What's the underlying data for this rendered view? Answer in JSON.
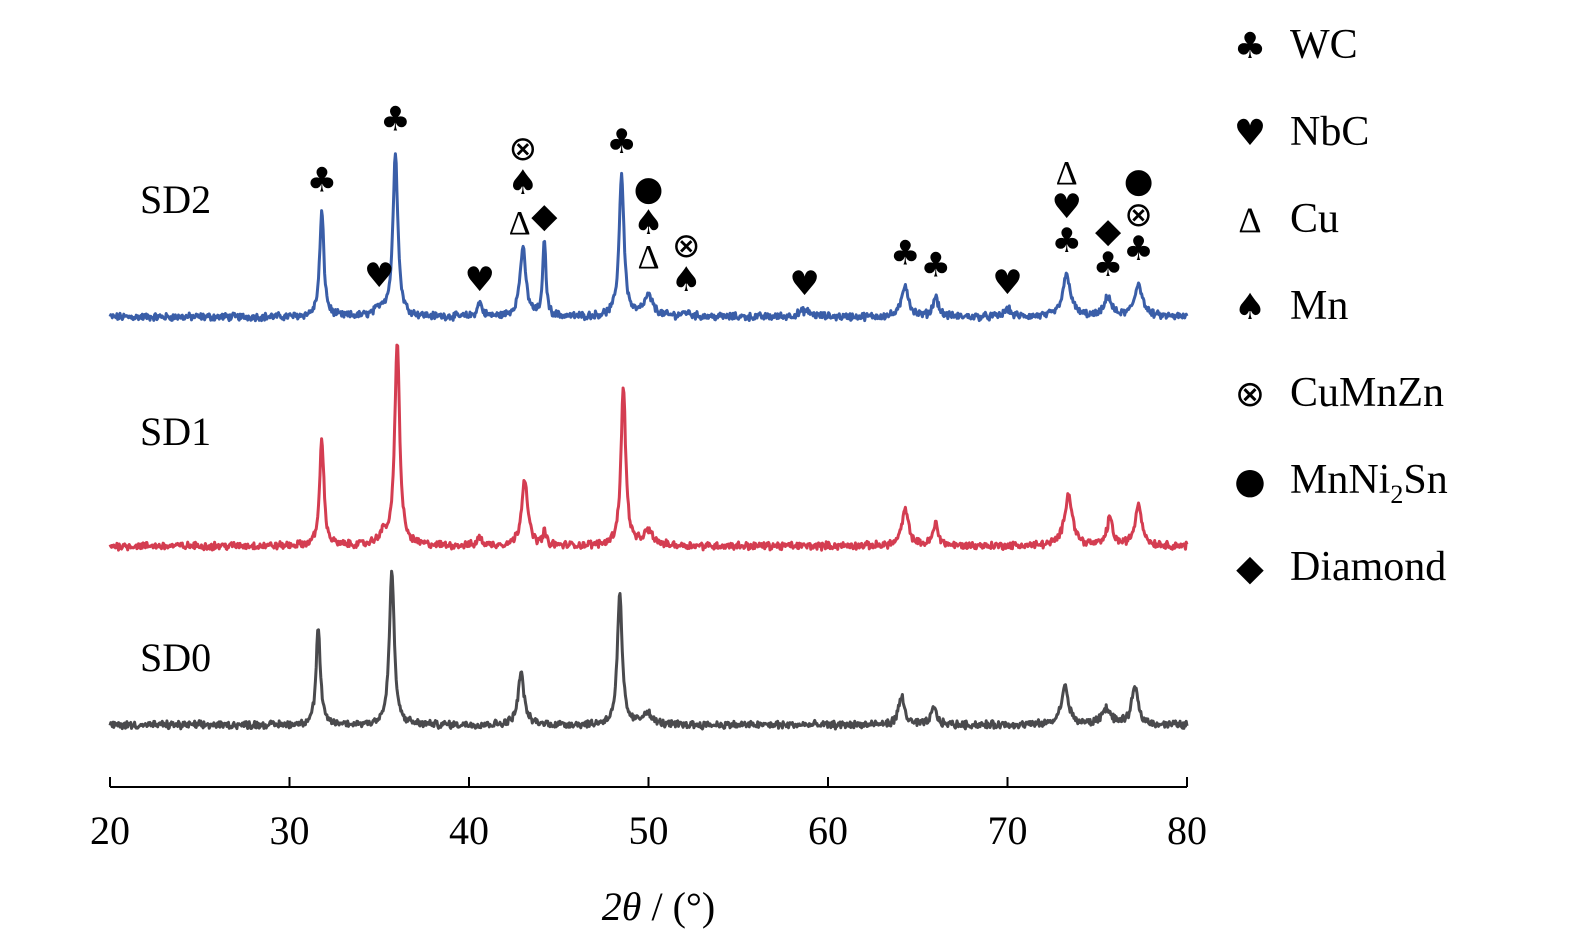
{
  "chart_data": {
    "type": "line",
    "xlabel_italic": "2θ",
    "xlabel_rest": " / (°)",
    "xlim": [
      20,
      80
    ],
    "x_ticks": [
      20,
      30,
      40,
      50,
      60,
      70,
      80
    ],
    "grid": false,
    "legend_placement": "right",
    "legend": [
      {
        "symbol": "♣",
        "label": "WC"
      },
      {
        "symbol": "♥",
        "label": "NbC"
      },
      {
        "symbol": "Δ",
        "label": "Cu"
      },
      {
        "symbol": "♠",
        "label": "Mn"
      },
      {
        "symbol": "⊗",
        "label": "CuMnZn"
      },
      {
        "symbol": "●",
        "label": "MnNi",
        "sub": "2",
        "tail": "Sn"
      },
      {
        "symbol": "◆",
        "label": "Diamond"
      }
    ],
    "series": [
      {
        "name": "SD2",
        "color": "#3a5ea8",
        "peaks": [
          {
            "x": 31.8,
            "h": 105,
            "w": 0.14
          },
          {
            "x": 35.1,
            "h": 8,
            "w": 0.35
          },
          {
            "x": 35.9,
            "h": 165,
            "w": 0.16
          },
          {
            "x": 40.6,
            "h": 14,
            "w": 0.15
          },
          {
            "x": 43.0,
            "h": 68,
            "w": 0.2
          },
          {
            "x": 44.2,
            "h": 78,
            "w": 0.1
          },
          {
            "x": 48.5,
            "h": 143,
            "w": 0.16
          },
          {
            "x": 50.0,
            "h": 20,
            "w": 0.3
          },
          {
            "x": 52.1,
            "h": 4,
            "w": 0.3
          },
          {
            "x": 58.7,
            "h": 6,
            "w": 0.4
          },
          {
            "x": 64.3,
            "h": 32,
            "w": 0.22
          },
          {
            "x": 66.0,
            "h": 20,
            "w": 0.18
          },
          {
            "x": 70.0,
            "h": 8,
            "w": 0.2
          },
          {
            "x": 73.3,
            "h": 42,
            "w": 0.26
          },
          {
            "x": 75.6,
            "h": 20,
            "w": 0.22
          },
          {
            "x": 77.3,
            "h": 33,
            "w": 0.26
          }
        ]
      },
      {
        "name": "SD1",
        "color": "#d43d51",
        "peaks": [
          {
            "x": 31.8,
            "h": 108,
            "w": 0.14
          },
          {
            "x": 35.2,
            "h": 10,
            "w": 0.3
          },
          {
            "x": 36.0,
            "h": 205,
            "w": 0.16
          },
          {
            "x": 40.6,
            "h": 8,
            "w": 0.15
          },
          {
            "x": 43.1,
            "h": 68,
            "w": 0.2
          },
          {
            "x": 44.2,
            "h": 14,
            "w": 0.1
          },
          {
            "x": 48.6,
            "h": 157,
            "w": 0.16
          },
          {
            "x": 50.0,
            "h": 14,
            "w": 0.3
          },
          {
            "x": 64.3,
            "h": 36,
            "w": 0.22
          },
          {
            "x": 66.0,
            "h": 22,
            "w": 0.18
          },
          {
            "x": 73.4,
            "h": 52,
            "w": 0.26
          },
          {
            "x": 75.7,
            "h": 28,
            "w": 0.18
          },
          {
            "x": 77.3,
            "h": 42,
            "w": 0.22
          }
        ]
      },
      {
        "name": "SD0",
        "color": "#4a4a4d",
        "peaks": [
          {
            "x": 31.6,
            "h": 97,
            "w": 0.14
          },
          {
            "x": 35.7,
            "h": 155,
            "w": 0.16
          },
          {
            "x": 42.9,
            "h": 52,
            "w": 0.2
          },
          {
            "x": 48.4,
            "h": 130,
            "w": 0.16
          },
          {
            "x": 49.9,
            "h": 12,
            "w": 0.3
          },
          {
            "x": 64.1,
            "h": 28,
            "w": 0.2
          },
          {
            "x": 65.9,
            "h": 17,
            "w": 0.18
          },
          {
            "x": 73.2,
            "h": 38,
            "w": 0.24
          },
          {
            "x": 75.5,
            "h": 16,
            "w": 0.3
          },
          {
            "x": 77.1,
            "h": 37,
            "w": 0.22
          }
        ]
      }
    ],
    "annotations": [
      {
        "x": 31.8,
        "symbols": [
          "♣"
        ]
      },
      {
        "x": 35.0,
        "symbols": [
          "♥"
        ]
      },
      {
        "x": 35.9,
        "symbols": [
          "♣"
        ]
      },
      {
        "x": 40.6,
        "symbols": [
          "♥"
        ]
      },
      {
        "x": 43.0,
        "symbols": [
          "⊗",
          "♠"
        ]
      },
      {
        "x": 43.1,
        "symbols": [
          "Δ"
        ]
      },
      {
        "x": 44.2,
        "symbols": [
          "◆"
        ]
      },
      {
        "x": 48.5,
        "symbols": [
          "♣"
        ]
      },
      {
        "x": 50.0,
        "symbols": [
          "●",
          "♠",
          "Δ"
        ]
      },
      {
        "x": 52.1,
        "symbols": [
          "⊗",
          "♠"
        ]
      },
      {
        "x": 58.7,
        "symbols": [
          "♥"
        ]
      },
      {
        "x": 64.3,
        "symbols": [
          "♣"
        ]
      },
      {
        "x": 66.0,
        "symbols": [
          "♣"
        ]
      },
      {
        "x": 70.0,
        "symbols": [
          "♥"
        ]
      },
      {
        "x": 73.3,
        "symbols": [
          "Δ",
          "♥",
          "♣"
        ]
      },
      {
        "x": 75.6,
        "symbols": [
          "◆",
          "♣"
        ]
      },
      {
        "x": 77.3,
        "symbols": [
          "●",
          "⊗",
          "♣"
        ]
      }
    ]
  }
}
